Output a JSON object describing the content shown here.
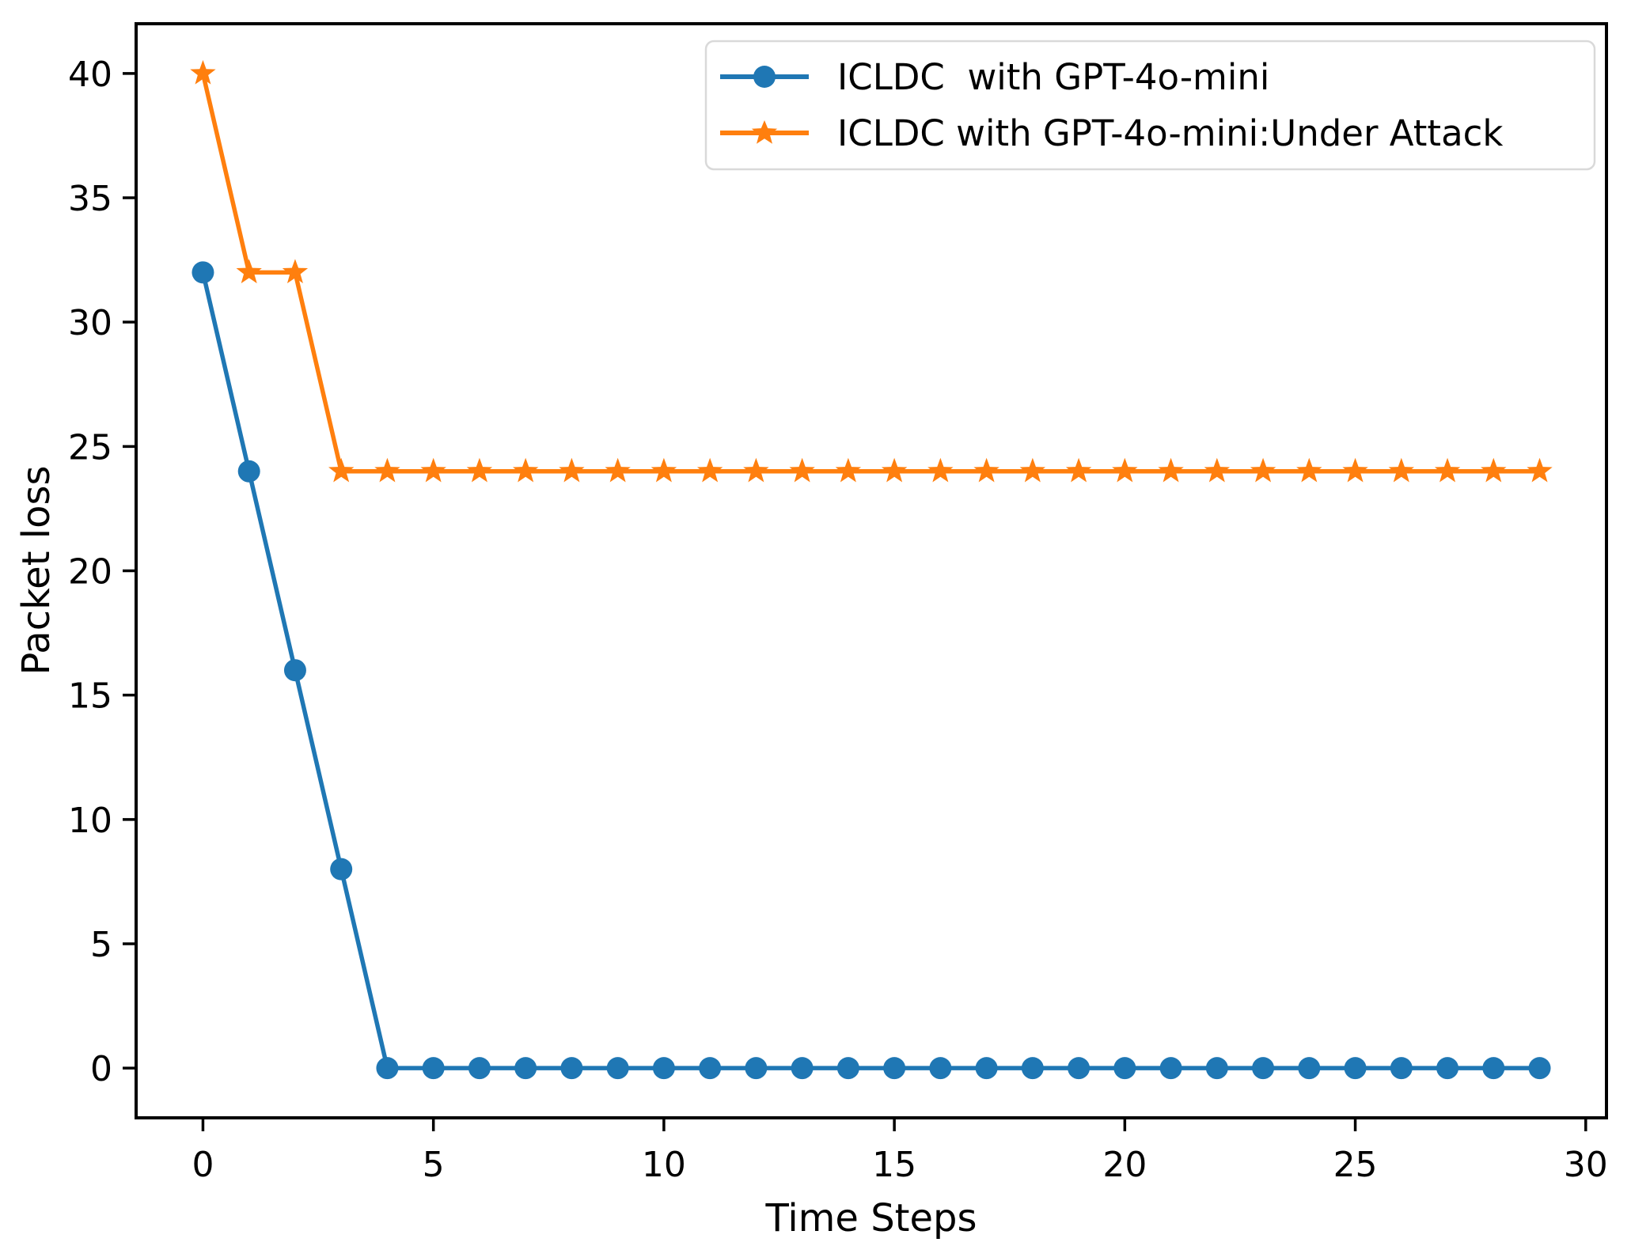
{
  "chart_data": {
    "type": "line",
    "title": "",
    "xlabel": "Time Steps",
    "ylabel": "Packet loss",
    "x": [
      0,
      1,
      2,
      3,
      4,
      5,
      6,
      7,
      8,
      9,
      10,
      11,
      12,
      13,
      14,
      15,
      16,
      17,
      18,
      19,
      20,
      21,
      22,
      23,
      24,
      25,
      26,
      27,
      28,
      29
    ],
    "series": [
      {
        "name": "ICLDC  with GPT-4o-mini",
        "color": "#1f77b4",
        "marker": "circle",
        "values": [
          32,
          24,
          16,
          8,
          0,
          0,
          0,
          0,
          0,
          0,
          0,
          0,
          0,
          0,
          0,
          0,
          0,
          0,
          0,
          0,
          0,
          0,
          0,
          0,
          0,
          0,
          0,
          0,
          0,
          0
        ]
      },
      {
        "name": "ICLDC with GPT-4o-mini:Under Attack",
        "color": "#ff7f0e",
        "marker": "star",
        "values": [
          40,
          32,
          32,
          24,
          24,
          24,
          24,
          24,
          24,
          24,
          24,
          24,
          24,
          24,
          24,
          24,
          24,
          24,
          24,
          24,
          24,
          24,
          24,
          24,
          24,
          24,
          24,
          24,
          24,
          24
        ]
      }
    ],
    "xticks": [
      0,
      5,
      10,
      15,
      20,
      25,
      30
    ],
    "yticks": [
      0,
      5,
      10,
      15,
      20,
      25,
      30,
      35,
      40
    ],
    "xlim": [
      -1.45,
      30.45
    ],
    "ylim": [
      -2,
      42
    ],
    "grid": false,
    "legend_position": "upper right",
    "axis_color": "#000000",
    "legend_border_color": "#d9d9d9",
    "background_color": "#ffffff"
  }
}
